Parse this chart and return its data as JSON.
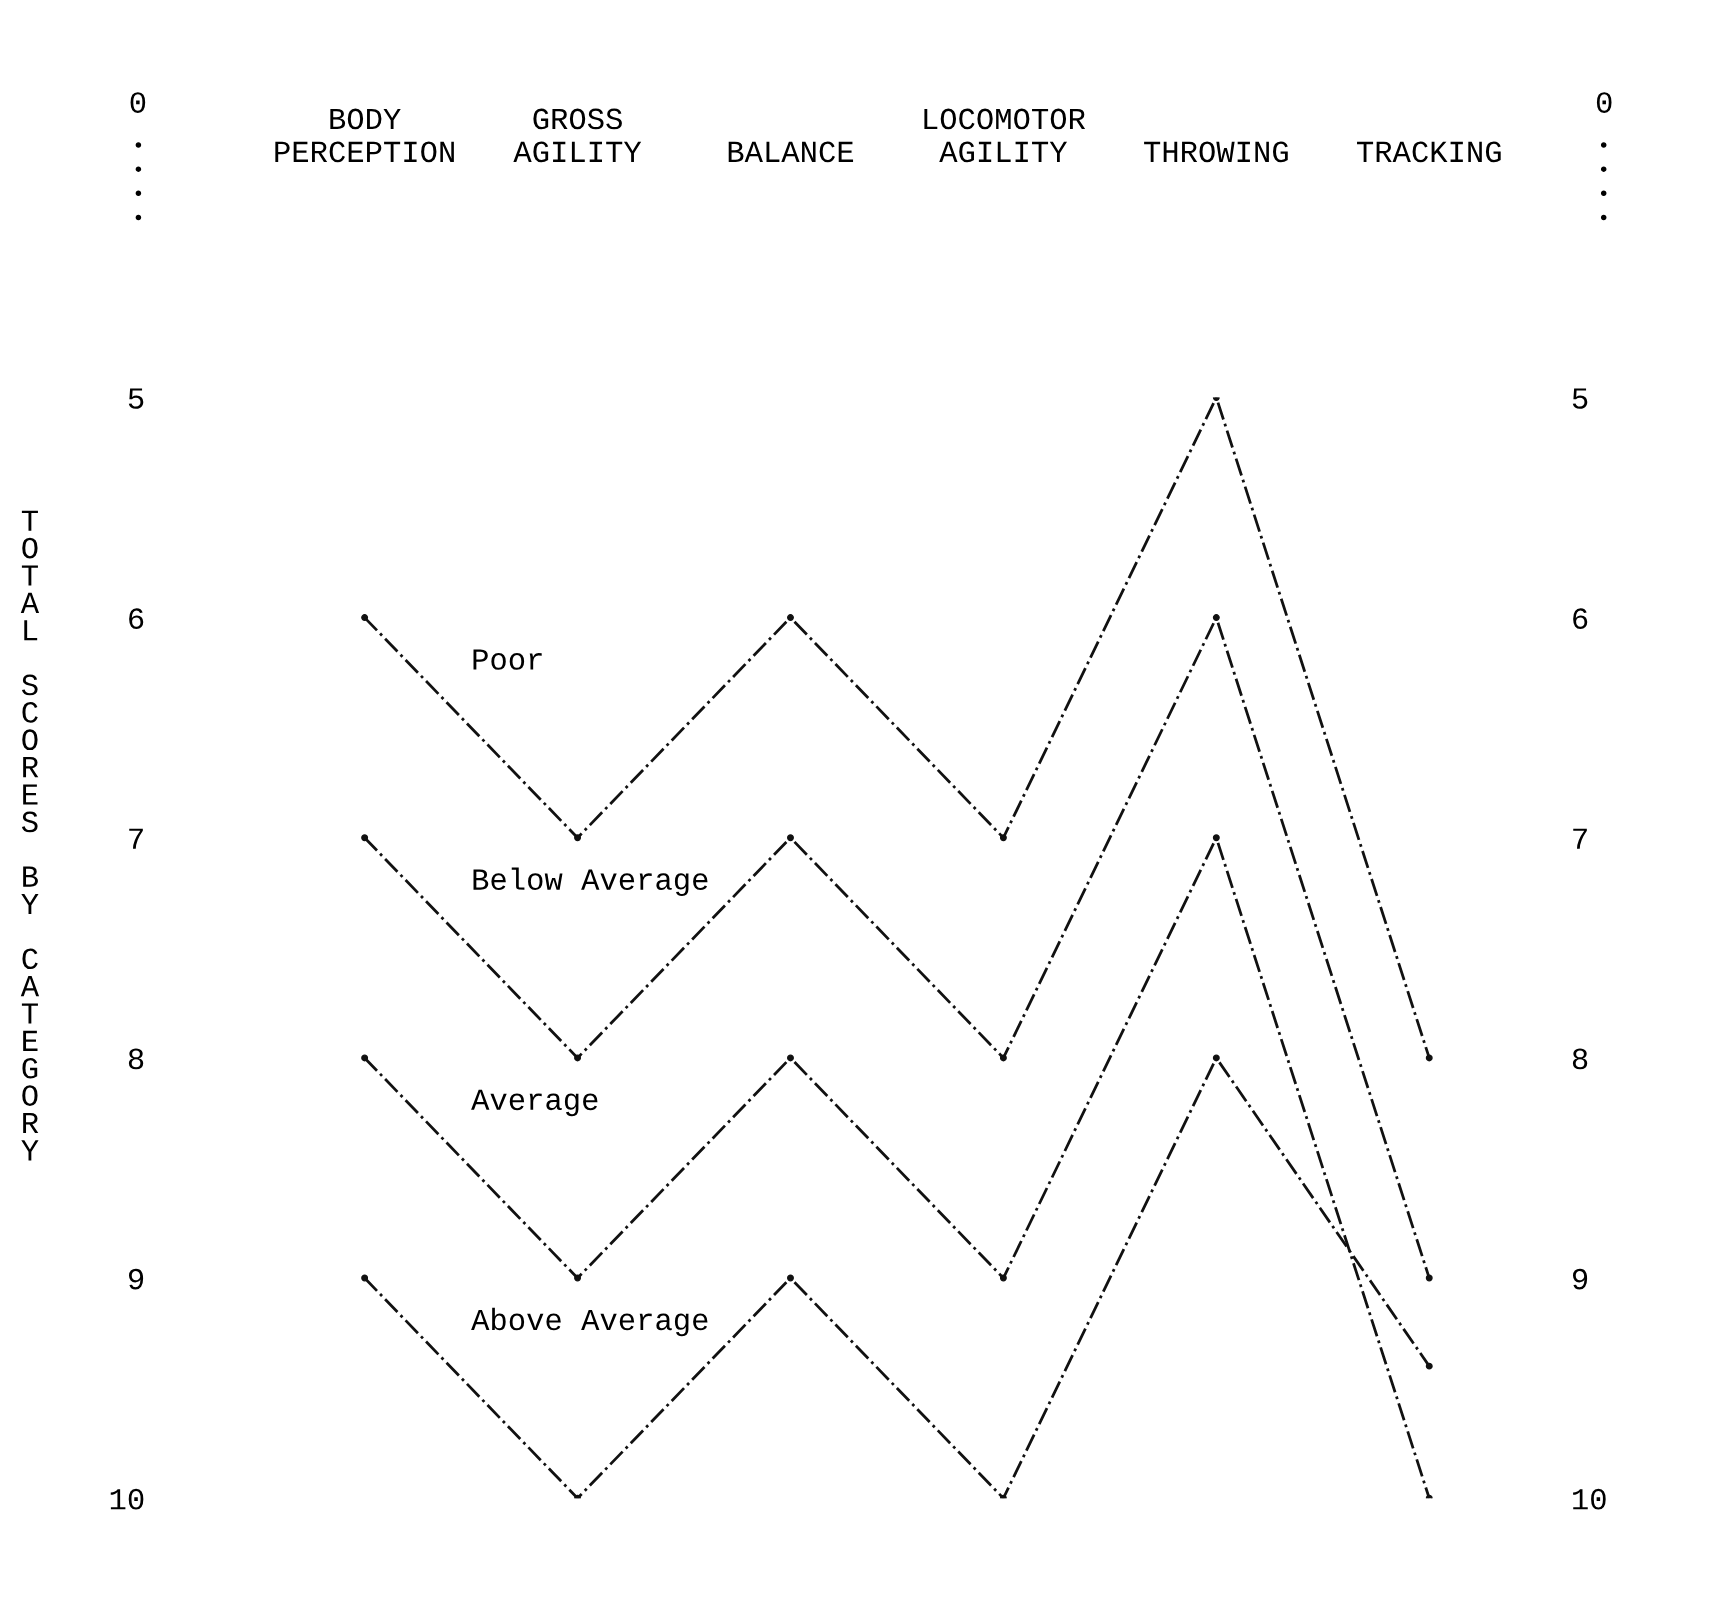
{
  "chart_data": {
    "type": "line",
    "ylabel": "TOTAL SCORES BY CATEGORY",
    "categories": [
      "BODY\nPERCEPTION",
      "GROSS\nAGILITY",
      "BALANCE",
      "LOCOMOTOR\nAGILITY",
      "THROWING",
      "TRACKING"
    ],
    "series": [
      {
        "name": "Poor",
        "color": "#111111",
        "values": [
          6,
          7,
          6,
          7,
          5,
          8
        ]
      },
      {
        "name": "Below Average",
        "color": "#111111",
        "values": [
          7,
          8,
          7,
          8,
          6,
          9
        ]
      },
      {
        "name": "Average",
        "color": "#111111",
        "values": [
          8,
          9,
          8,
          9,
          7,
          10
        ]
      },
      {
        "name": "Above Average",
        "color": "#111111",
        "values": [
          9,
          10,
          9,
          10,
          8,
          9.4
        ]
      }
    ],
    "ylim": [
      10,
      5
    ],
    "yticks": [
      5,
      6,
      7,
      8,
      9,
      10
    ],
    "y2lim": [
      10,
      5
    ],
    "y2ticks": [
      5,
      6,
      7,
      8,
      9,
      10
    ],
    "annotations": [
      "0",
      "0"
    ],
    "marker": "circle",
    "line_style": "dashed",
    "grid": false,
    "legend": false
  }
}
